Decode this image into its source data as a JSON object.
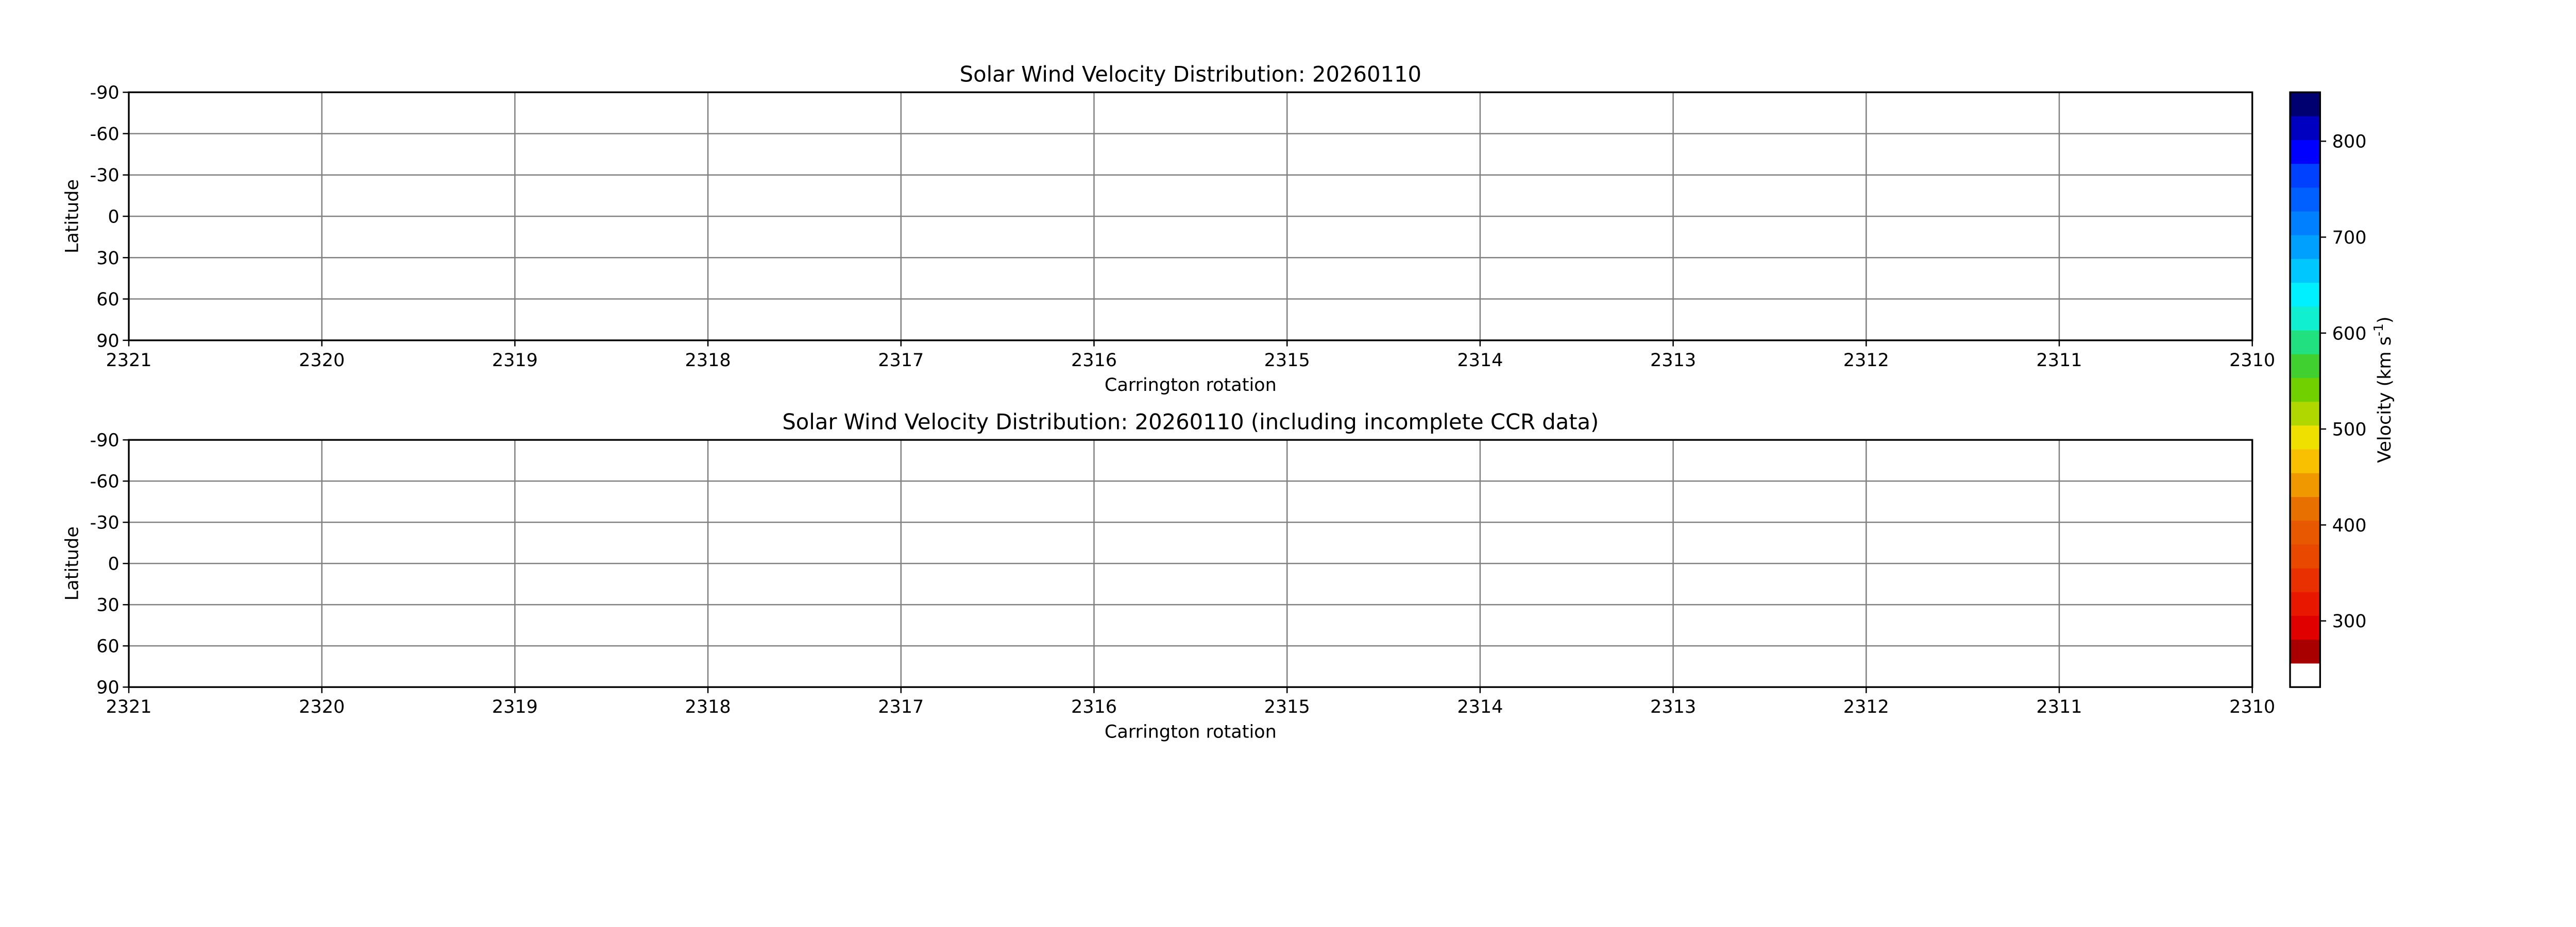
{
  "chart_data": [
    {
      "type": "heatmap",
      "title": "Solar Wind Velocity Distribution: 20260110",
      "xlabel": "Carrington rotation",
      "ylabel": "Latitude",
      "xlim": [
        2321,
        2310
      ],
      "ylim": [
        -90,
        90
      ],
      "x_ticks": [
        "2321",
        "2320",
        "2319",
        "2318",
        "2317",
        "2316",
        "2315",
        "2314",
        "2313",
        "2312",
        "2311",
        "2310"
      ],
      "y_ticks": [
        "-90",
        "-60",
        "-30",
        "0",
        "30",
        "60",
        "90"
      ],
      "grid": true,
      "values": []
    },
    {
      "type": "heatmap",
      "title": "Solar Wind Velocity Distribution: 20260110 (including incomplete CCR data)",
      "xlabel": "Carrington rotation",
      "ylabel": "Latitude",
      "xlim": [
        2321,
        2310
      ],
      "ylim": [
        -90,
        90
      ],
      "x_ticks": [
        "2321",
        "2320",
        "2319",
        "2318",
        "2317",
        "2316",
        "2315",
        "2314",
        "2313",
        "2312",
        "2311",
        "2310"
      ],
      "y_ticks": [
        "-90",
        "-60",
        "-30",
        "0",
        "30",
        "60",
        "90"
      ],
      "grid": true,
      "values": []
    }
  ],
  "colorbar": {
    "label": "Velocity (km s",
    "label_sup": "-1",
    "label_end": ")",
    "range": [
      231,
      851
    ],
    "ticks": [
      "300",
      "400",
      "500",
      "600",
      "700",
      "800"
    ],
    "colors": [
      "#ffffff",
      "#a80000",
      "#e00000",
      "#e81800",
      "#e83000",
      "#e84800",
      "#e85800",
      "#e87000",
      "#f09800",
      "#f8c000",
      "#f0e000",
      "#b0d800",
      "#70d000",
      "#40d030",
      "#20e080",
      "#10f0d0",
      "#00f0ff",
      "#00c8ff",
      "#00a0ff",
      "#0080ff",
      "#0060ff",
      "#0040ff",
      "#0000ff",
      "#0000c0",
      "#000070"
    ]
  }
}
